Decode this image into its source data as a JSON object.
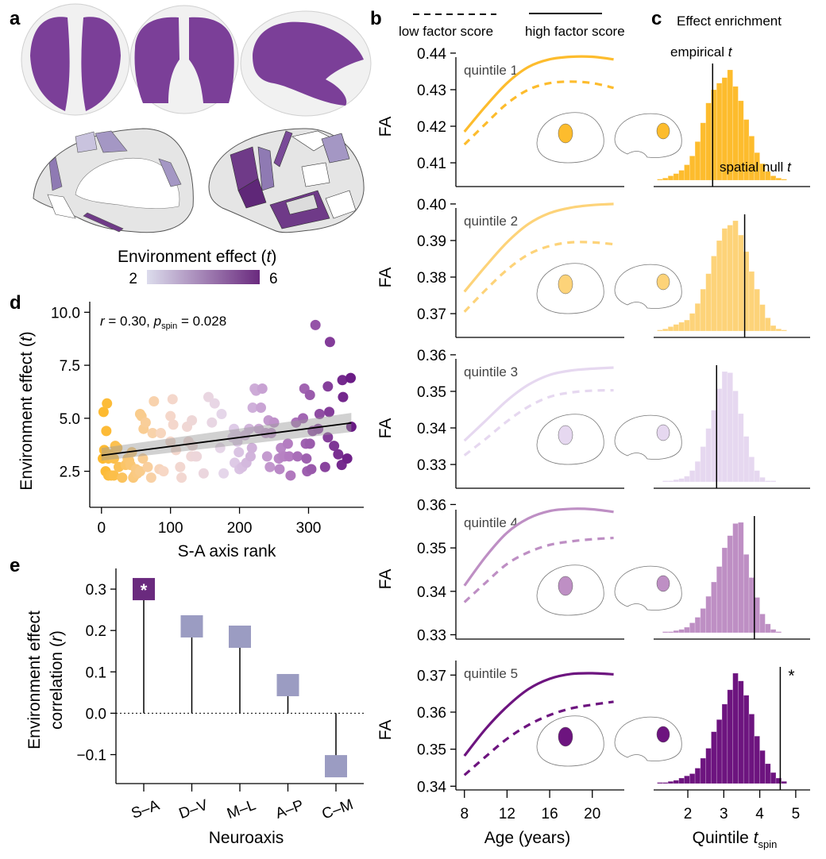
{
  "panel_letters": {
    "a": "a",
    "b": "b",
    "c": "c",
    "d": "d",
    "e": "e"
  },
  "panel_a": {
    "colorbar_title": "Environment effect (",
    "colorbar_title_italic": "t",
    "colorbar_title_end": ")",
    "colorbar_min_label": "2",
    "colorbar_max_label": "6",
    "colorbar_colors": [
      "#dcdcec",
      "#6a2a7e"
    ],
    "tract_color": "#7b3f98",
    "brain_views": [
      "axial",
      "coronal",
      "sagittal"
    ],
    "surface_views": [
      "medial",
      "lateral"
    ]
  },
  "legend_b": {
    "low_label": "low factor score",
    "high_label": "high factor score"
  },
  "panel_c_title": "Effect enrichment",
  "annotations_c": {
    "empirical": "empirical ",
    "empirical_italic": "t",
    "null": "spatial null ",
    "null_italic": "t",
    "significance_marker": "*"
  },
  "chart_data": [
    {
      "id": "d",
      "type": "scatter",
      "title": "",
      "annotation": {
        "r_label": "r",
        "r_text": " = 0.30, ",
        "p_label": "p",
        "p_sub": "spin",
        "p_text": " = 0.028"
      },
      "xlabel": "S-A axis rank",
      "ylabel_main": "Environment effect (",
      "ylabel_italic": "t",
      "ylabel_end": ")",
      "xlim": [
        -17,
        380
      ],
      "ylim": [
        0.8,
        10.5
      ],
      "xticks": [
        0,
        100,
        200,
        300
      ],
      "yticks": [
        2.5,
        5.0,
        7.5,
        10.0
      ],
      "ytick_labels": [
        "2.5",
        "5.0",
        "7.5",
        "10.0"
      ],
      "color_scale": [
        "#fdb92b",
        "#f7d7c6",
        "#e4d6ec",
        "#b37cc0",
        "#6a1b85"
      ],
      "regression": {
        "x0": 0,
        "y0": 3.25,
        "x1": 362,
        "y1": 4.78,
        "ci_low": [
          3.0,
          4.35
        ],
        "ci_high": [
          3.6,
          5.25
        ]
      },
      "points": [
        [
          3,
          5.3
        ],
        [
          8,
          5.7
        ],
        [
          7,
          4.4
        ],
        [
          4,
          3.5
        ],
        [
          2,
          3.1
        ],
        [
          10,
          3.1
        ],
        [
          14,
          3.3
        ],
        [
          18,
          3.1
        ],
        [
          20,
          3.7
        ],
        [
          23,
          3.6
        ],
        [
          6,
          2.5
        ],
        [
          10,
          2.3
        ],
        [
          14,
          2.3
        ],
        [
          18,
          2.3
        ],
        [
          25,
          2.7
        ],
        [
          30,
          2.2
        ],
        [
          35,
          2.8
        ],
        [
          38,
          3.1
        ],
        [
          40,
          3.0
        ],
        [
          42,
          2.8
        ],
        [
          44,
          3.4
        ],
        [
          46,
          2.2
        ],
        [
          48,
          2.3
        ],
        [
          50,
          2.6
        ],
        [
          52,
          2.4
        ],
        [
          56,
          2.5
        ],
        [
          60,
          3.1
        ],
        [
          56,
          5.2
        ],
        [
          58,
          5.1
        ],
        [
          61,
          4.5
        ],
        [
          64,
          4.8
        ],
        [
          67,
          2.7
        ],
        [
          72,
          2.2
        ],
        [
          74,
          4.3
        ],
        [
          76,
          5.8
        ],
        [
          86,
          4.3
        ],
        [
          84,
          2.6
        ],
        [
          90,
          2.5
        ],
        [
          100,
          3.9
        ],
        [
          100,
          5.1
        ],
        [
          103,
          5.9
        ],
        [
          104,
          4.7
        ],
        [
          108,
          3.5
        ],
        [
          114,
          2.7
        ],
        [
          116,
          2.2
        ],
        [
          124,
          4.6
        ],
        [
          126,
          3.9
        ],
        [
          130,
          3.2
        ],
        [
          131,
          4.9
        ],
        [
          132,
          3.7
        ],
        [
          136,
          3.2
        ],
        [
          138,
          3.2
        ],
        [
          148,
          2.4
        ],
        [
          155,
          6.0
        ],
        [
          160,
          4.8
        ],
        [
          164,
          5.7
        ],
        [
          172,
          3.6
        ],
        [
          174,
          5.2
        ],
        [
          177,
          2.4
        ],
        [
          190,
          4.1
        ],
        [
          192,
          4.5
        ],
        [
          193,
          2.9
        ],
        [
          196,
          4.2
        ],
        [
          197,
          3.9
        ],
        [
          199,
          3.4
        ],
        [
          200,
          2.6
        ],
        [
          204,
          2.7
        ],
        [
          208,
          4.2
        ],
        [
          210,
          2.9
        ],
        [
          214,
          4.5
        ],
        [
          216,
          3.2
        ],
        [
          218,
          3.6
        ],
        [
          219,
          5.5
        ],
        [
          222,
          6.4
        ],
        [
          224,
          6.3
        ],
        [
          228,
          4.5
        ],
        [
          231,
          5.5
        ],
        [
          233,
          6.4
        ],
        [
          238,
          4.3
        ],
        [
          240,
          3.2
        ],
        [
          242,
          4.9
        ],
        [
          244,
          2.7
        ],
        [
          246,
          4.3
        ],
        [
          250,
          4.8
        ],
        [
          257,
          3.1
        ],
        [
          258,
          2.6
        ],
        [
          260,
          3.6
        ],
        [
          262,
          3.2
        ],
        [
          265,
          3.2
        ],
        [
          270,
          3.8
        ],
        [
          272,
          3.2
        ],
        [
          274,
          2.3
        ],
        [
          282,
          4.8
        ],
        [
          284,
          3.2
        ],
        [
          292,
          5.0
        ],
        [
          294,
          6.4
        ],
        [
          296,
          3.8
        ],
        [
          297,
          3.1
        ],
        [
          298,
          2.5
        ],
        [
          302,
          3.8
        ],
        [
          302,
          6.1
        ],
        [
          304,
          2.6
        ],
        [
          306,
          4.4
        ],
        [
          310,
          9.4
        ],
        [
          314,
          4.5
        ],
        [
          316,
          5.2
        ],
        [
          324,
          2.7
        ],
        [
          328,
          4.1
        ],
        [
          328,
          6.5
        ],
        [
          330,
          5.3
        ],
        [
          331,
          8.6
        ],
        [
          337,
          3.7
        ],
        [
          343,
          3.3
        ],
        [
          348,
          2.8
        ],
        [
          349,
          6.8
        ],
        [
          350,
          6.0
        ],
        [
          356,
          3.1
        ],
        [
          361,
          6.9
        ],
        [
          362,
          4.6
        ]
      ]
    },
    {
      "id": "e",
      "type": "bar",
      "subtype": "lollipop",
      "xlabel": "Neuroaxis",
      "ylabel_line1": "Environment effect",
      "ylabel_line2": "correlation (",
      "ylabel_italic": "r",
      "ylabel_end": ")",
      "categories": [
        "S–A",
        "D–V",
        "M–L",
        "A–P",
        "C–M"
      ],
      "values": [
        0.3,
        0.21,
        0.185,
        0.068,
        -0.128
      ],
      "significant": [
        true,
        false,
        false,
        false,
        false
      ],
      "significance_marker": "*",
      "colors": {
        "significant": "#6a2a7e",
        "non_significant": "#9b9cc2"
      },
      "ylim": [
        -0.17,
        0.35
      ],
      "yticks": [
        -0.1,
        0.0,
        0.1,
        0.2,
        0.3
      ],
      "ytick_labels": [
        "−0.1",
        "0.0",
        "0.1",
        "0.2",
        "0.3"
      ]
    },
    {
      "id": "b",
      "type": "line",
      "xlabel": "Age (years)",
      "ylabel": "FA",
      "xlim": [
        7.2,
        23
      ],
      "xticks": [
        8,
        12,
        16,
        20
      ],
      "panels": [
        {
          "label": "quintile 1",
          "color": "#fdbc2d",
          "ylim": [
            0.4035,
            0.4415
          ],
          "yticks": [
            0.41,
            0.42,
            0.43,
            0.44
          ],
          "ytick_labels": [
            "0.41",
            "0.42",
            "0.43",
            "0.44"
          ],
          "high": {
            "x": [
              8,
              10,
              12,
              14,
              16,
              18,
              20,
              22
            ],
            "y": [
              0.4185,
              0.4255,
              0.4318,
              0.4362,
              0.4383,
              0.439,
              0.439,
              0.4383
            ]
          },
          "low": {
            "x": [
              8,
              10,
              12,
              14,
              16,
              18,
              20,
              22
            ],
            "y": [
              0.415,
              0.4207,
              0.4262,
              0.43,
              0.4318,
              0.4322,
              0.4318,
              0.4305
            ]
          }
        },
        {
          "label": "quintile 2",
          "color": "#fdd379",
          "ylim": [
            0.3635,
            0.4015
          ],
          "yticks": [
            0.37,
            0.38,
            0.39,
            0.4
          ],
          "ytick_labels": [
            "0.37",
            "0.38",
            "0.39",
            "0.40"
          ],
          "high": {
            "x": [
              8,
              10,
              12,
              14,
              16,
              18,
              20,
              22
            ],
            "y": [
              0.376,
              0.383,
              0.3895,
              0.3945,
              0.3975,
              0.399,
              0.3997,
              0.4
            ]
          },
          "low": {
            "x": [
              8,
              10,
              12,
              14,
              16,
              18,
              20,
              22
            ],
            "y": [
              0.3705,
              0.3765,
              0.382,
              0.3862,
              0.3885,
              0.3895,
              0.3895,
              0.389
            ]
          }
        },
        {
          "label": "quintile 3",
          "color": "#e6d8f0",
          "ylim": [
            0.3235,
            0.3615
          ],
          "yticks": [
            0.33,
            0.34,
            0.35,
            0.36
          ],
          "ytick_labels": [
            "0.33",
            "0.34",
            "0.35",
            "0.36"
          ],
          "high": {
            "x": [
              8,
              10,
              12,
              14,
              16,
              18,
              20,
              22
            ],
            "y": [
              0.3365,
              0.342,
              0.3475,
              0.3518,
              0.3545,
              0.3557,
              0.3562,
              0.3565
            ]
          },
          "low": {
            "x": [
              8,
              10,
              12,
              14,
              16,
              18,
              20,
              22
            ],
            "y": [
              0.3325,
              0.337,
              0.3418,
              0.3458,
              0.3485,
              0.3497,
              0.3502,
              0.3503
            ]
          }
        },
        {
          "label": "quintile 4",
          "color": "#be8fc4",
          "ylim": [
            0.329,
            0.361
          ],
          "yticks": [
            0.33,
            0.34,
            0.35,
            0.36
          ],
          "ytick_labels": [
            "0.33",
            "0.34",
            "0.35",
            "0.36"
          ],
          "high": {
            "x": [
              8,
              10,
              12,
              14,
              16,
              18,
              20,
              22
            ],
            "y": [
              0.3413,
              0.348,
              0.3535,
              0.3568,
              0.3585,
              0.359,
              0.3589,
              0.3583
            ]
          },
          "low": {
            "x": [
              8,
              10,
              12,
              14,
              16,
              18,
              20,
              22
            ],
            "y": [
              0.3375,
              0.342,
              0.3463,
              0.349,
              0.3507,
              0.3515,
              0.352,
              0.3523
            ]
          }
        },
        {
          "label": "quintile 5",
          "color": "#6d147f",
          "ylim": [
            0.339,
            0.3765
          ],
          "yticks": [
            0.34,
            0.35,
            0.36,
            0.37
          ],
          "ytick_labels": [
            "0.34",
            "0.35",
            "0.36",
            "0.37"
          ],
          "high": {
            "x": [
              8,
              10,
              12,
              14,
              16,
              18,
              20,
              22
            ],
            "y": [
              0.3482,
              0.3555,
              0.3615,
              0.3662,
              0.369,
              0.3703,
              0.3705,
              0.3702
            ]
          },
          "low": {
            "x": [
              8,
              10,
              12,
              14,
              16,
              18,
              20,
              22
            ],
            "y": [
              0.343,
              0.348,
              0.3528,
              0.3565,
              0.3592,
              0.361,
              0.362,
              0.3628
            ]
          }
        }
      ]
    },
    {
      "id": "c",
      "type": "bar",
      "subtype": "histogram",
      "title": "Effect enrichment",
      "xlabel_main": "Quintile ",
      "xlabel_italic": "t",
      "xlabel_sub": "spin",
      "xlim": [
        1.05,
        5.4
      ],
      "xticks": [
        2,
        3,
        4,
        5
      ],
      "panels": [
        {
          "color": "#fdbc2d",
          "empirical_t": 2.69,
          "significant": false,
          "bin_start": 1.15,
          "bin_width": 0.15,
          "counts": [
            1,
            2,
            4,
            6,
            9,
            14,
            22,
            35,
            52,
            70,
            82,
            88,
            93,
            100,
            85,
            72,
            55,
            40,
            25,
            15,
            8,
            4,
            2,
            1
          ]
        },
        {
          "color": "#fdd379",
          "empirical_t": 3.58,
          "significant": false,
          "bin_start": 1.15,
          "bin_width": 0.15,
          "counts": [
            1,
            2,
            4,
            6,
            8,
            10,
            16,
            25,
            38,
            52,
            68,
            82,
            93,
            96,
            100,
            87,
            72,
            54,
            38,
            24,
            12,
            5,
            2,
            1
          ]
        },
        {
          "color": "#e6d8f0",
          "empirical_t": 2.8,
          "significant": false,
          "bin_start": 1.15,
          "bin_width": 0.15,
          "counts": [
            0,
            1,
            1,
            2,
            3,
            5,
            10,
            18,
            31,
            47,
            63,
            82,
            97,
            96,
            80,
            60,
            40,
            22,
            10,
            4,
            1,
            1,
            0,
            0
          ]
        },
        {
          "color": "#be8fc4",
          "empirical_t": 3.85,
          "significant": false,
          "bin_start": 1.15,
          "bin_width": 0.15,
          "counts": [
            0,
            1,
            1,
            2,
            3,
            5,
            9,
            14,
            22,
            33,
            46,
            60,
            77,
            88,
            99,
            100,
            71,
            50,
            32,
            17,
            8,
            3,
            1,
            0
          ]
        },
        {
          "color": "#6d147f",
          "empirical_t": 4.57,
          "significant": true,
          "bin_start": 1.15,
          "bin_width": 0.15,
          "counts": [
            1,
            1,
            2,
            3,
            5,
            7,
            9,
            14,
            23,
            32,
            47,
            58,
            72,
            85,
            100,
            93,
            80,
            63,
            43,
            30,
            18,
            10,
            5,
            2
          ]
        }
      ]
    }
  ]
}
